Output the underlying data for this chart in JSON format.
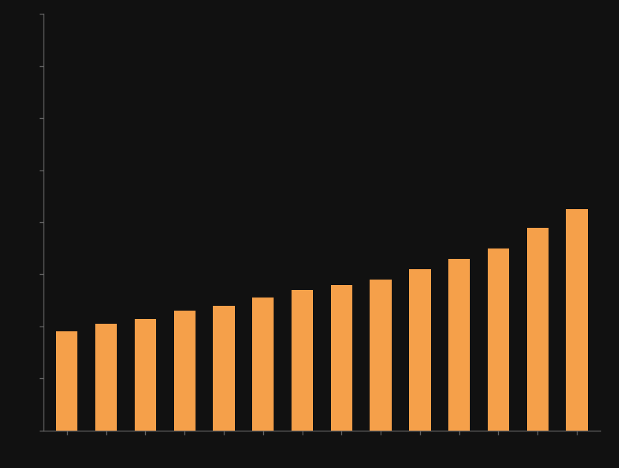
{
  "values": [
    38,
    41,
    43,
    46,
    48,
    51,
    54,
    56,
    58,
    62,
    66,
    70,
    78,
    85
  ],
  "bar_color": "#F5A04A",
  "background_color": "#111111",
  "axes_facecolor": "#111111",
  "spine_color": "#666666",
  "tick_color": "#666666",
  "ylim": [
    0,
    160
  ],
  "bar_width": 0.55,
  "figsize": [
    8.96,
    6.78
  ],
  "dpi": 100
}
